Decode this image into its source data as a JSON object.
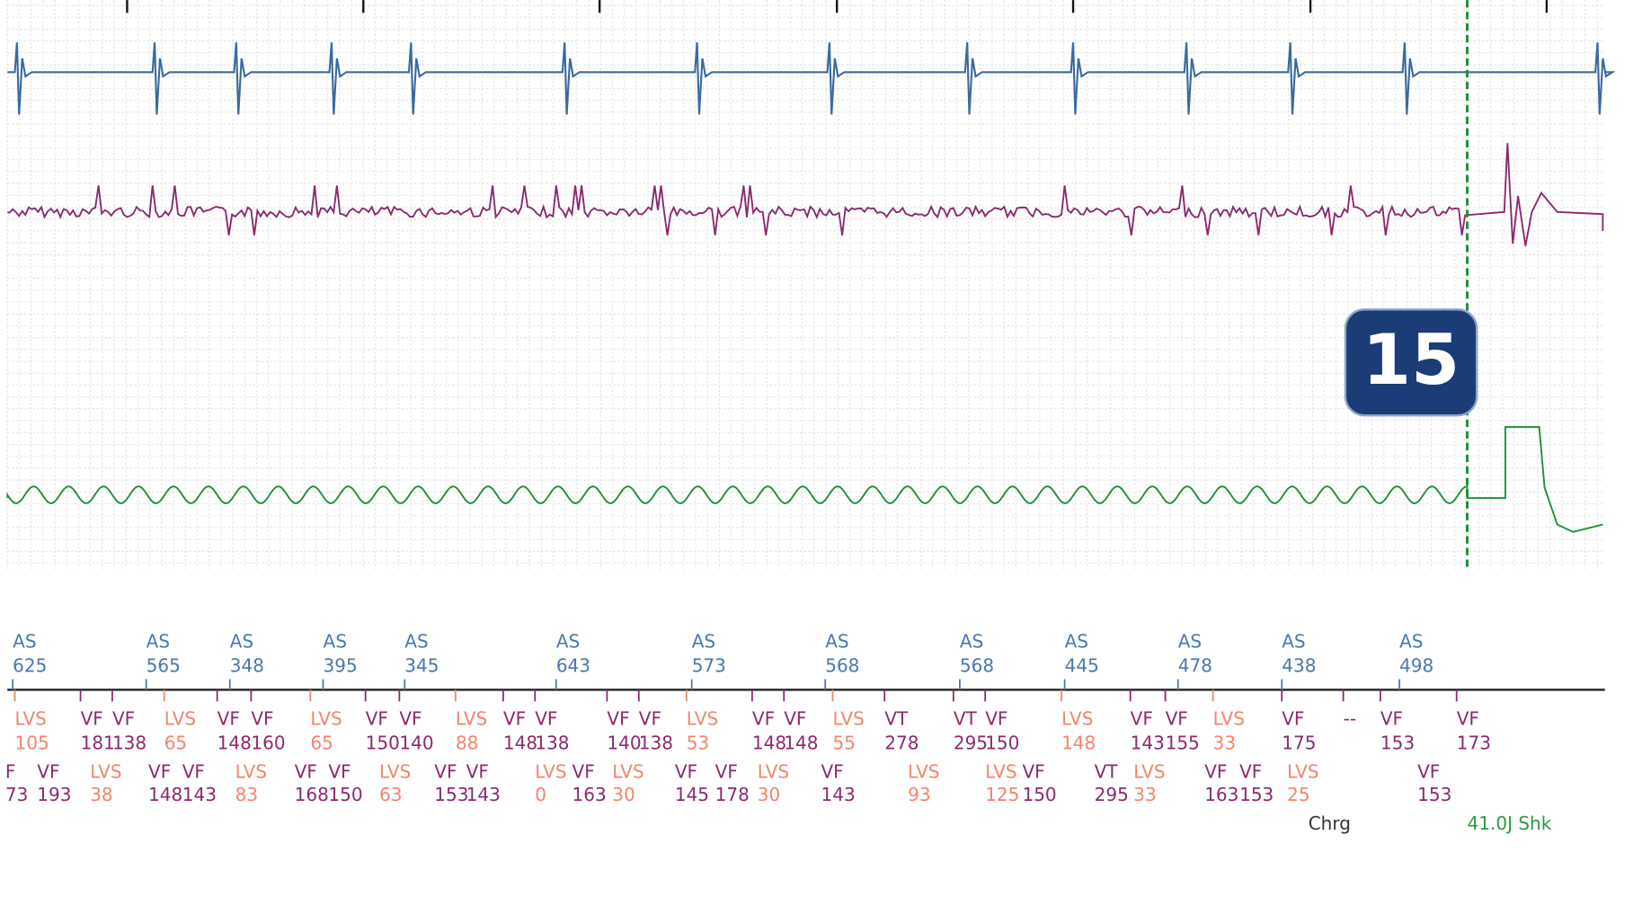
{
  "badge": "15",
  "atrial_markers": [
    {
      "label": "AS",
      "value": "625"
    },
    {
      "label": "AS",
      "value": "565"
    },
    {
      "label": "AS",
      "value": "348"
    },
    {
      "label": "AS",
      "value": "395"
    },
    {
      "label": "AS",
      "value": "345"
    },
    {
      "label": "AS",
      "value": "643"
    },
    {
      "label": "AS",
      "value": "573"
    },
    {
      "label": "AS",
      "value": "568"
    },
    {
      "label": "AS",
      "value": "568"
    },
    {
      "label": "AS",
      "value": "445"
    },
    {
      "label": "AS",
      "value": "478"
    },
    {
      "label": "AS",
      "value": "438"
    },
    {
      "label": "AS",
      "value": "498"
    }
  ],
  "ventricular_row1": [
    {
      "label": "LVS",
      "value": "105"
    },
    {
      "label": "VF",
      "value": "181"
    },
    {
      "label": "VF",
      "value": "138"
    },
    {
      "label": "LVS",
      "value": "65"
    },
    {
      "label": "VF",
      "value": "148"
    },
    {
      "label": "VF",
      "value": "160"
    },
    {
      "label": "LVS",
      "value": "65"
    },
    {
      "label": "VF",
      "value": "150"
    },
    {
      "label": "VF",
      "value": "140"
    },
    {
      "label": "LVS",
      "value": "88"
    },
    {
      "label": "VF",
      "value": "148"
    },
    {
      "label": "VF",
      "value": "138"
    },
    {
      "label": "VF",
      "value": "140"
    },
    {
      "label": "VF",
      "value": "138"
    },
    {
      "label": "LVS",
      "value": "53"
    },
    {
      "label": "VF",
      "value": "148"
    },
    {
      "label": "VF",
      "value": "148"
    },
    {
      "label": "LVS",
      "value": "55"
    },
    {
      "label": "VT",
      "value": "278"
    },
    {
      "label": "VT",
      "value": "295"
    },
    {
      "label": "VF",
      "value": "150"
    },
    {
      "label": "LVS",
      "value": "148"
    },
    {
      "label": "VF",
      "value": "143"
    },
    {
      "label": "VF",
      "value": "155"
    },
    {
      "label": "LVS",
      "value": "33"
    },
    {
      "label": "VF",
      "value": "175"
    },
    {
      "label": "--"
    },
    {
      "label": "VF",
      "value": "153"
    },
    {
      "label": "VF",
      "value": "173"
    }
  ],
  "ventricular_row2": [
    {
      "label": "F",
      "value": "73"
    },
    {
      "label": "VF",
      "value": "193"
    },
    {
      "label": "LVS",
      "value": "38"
    },
    {
      "label": "VF",
      "value": "148"
    },
    {
      "label": "VF",
      "value": "143"
    },
    {
      "label": "LVS",
      "value": "83"
    },
    {
      "label": "VF",
      "value": "168"
    },
    {
      "label": "VF",
      "value": "150"
    },
    {
      "label": "LVS",
      "value": "63"
    },
    {
      "label": "VF",
      "value": "153"
    },
    {
      "label": "VF",
      "value": "143"
    },
    {
      "label": "LVS",
      "value": "0"
    },
    {
      "label": "VF",
      "value": "163"
    },
    {
      "label": "LVS",
      "value": "30"
    },
    {
      "label": "VF",
      "value": "145"
    },
    {
      "label": "VF",
      "value": "178"
    },
    {
      "label": "LVS",
      "value": "30"
    },
    {
      "label": "VF",
      "value": "143"
    },
    {
      "label": "LVS",
      "value": "93"
    },
    {
      "label": "LVS",
      "value": "125"
    },
    {
      "label": "VF",
      "value": "150"
    },
    {
      "label": "VT",
      "value": "295"
    },
    {
      "label": "LVS",
      "value": "33"
    },
    {
      "label": "VF",
      "value": "163"
    },
    {
      "label": "VF",
      "value": "153"
    },
    {
      "label": "LVS",
      "value": "25"
    },
    {
      "label": "VF",
      "value": "153"
    }
  ],
  "annotations": {
    "charge": "Chrg",
    "shock": "41.0J Shk"
  }
}
